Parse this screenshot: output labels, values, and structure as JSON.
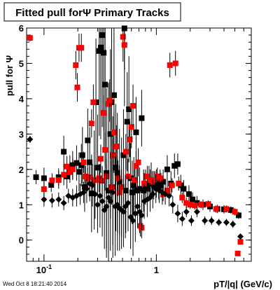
{
  "chart_data": {
    "type": "scatter",
    "title": "Fitted pull forΨ   Primary Tracks",
    "xlabel": "pT/|q| (GeV/c)",
    "ylabel": "pull for Ψ",
    "xscale": "log",
    "xlim": [
      0.07,
      7.0
    ],
    "ylim": [
      -0.6,
      6.0
    ],
    "x_ticks": [
      {
        "value": 0.1,
        "label": "10",
        "sup": "-1"
      },
      {
        "value": 1,
        "label": "1",
        "sup": ""
      }
    ],
    "y_ticks": [
      0,
      1,
      2,
      3,
      4,
      5,
      6
    ],
    "grid": false,
    "legend": "none",
    "series": [
      {
        "marker": "square",
        "color": "#000000",
        "points": [
          [
            0.085,
            1.78,
            0.2
          ],
          [
            0.1,
            1.75,
            0.3
          ],
          [
            0.116,
            1.56,
            0.2
          ],
          [
            0.135,
            1.78,
            0.25
          ],
          [
            0.15,
            2.5,
            0.45
          ],
          [
            0.16,
            1.8,
            0.35
          ],
          [
            0.17,
            2.05,
            0.35
          ],
          [
            0.18,
            2.12,
            0.4
          ],
          [
            0.195,
            2.18,
            0.5
          ],
          [
            0.205,
            1.93,
            0.55
          ],
          [
            0.215,
            2.12,
            0.6
          ],
          [
            0.22,
            2.4,
            0.8
          ],
          [
            0.23,
            1.5,
            0.7
          ],
          [
            0.245,
            2.82,
            0.9
          ],
          [
            0.255,
            2.2,
            1.0
          ],
          [
            0.265,
            1.32,
            1.1
          ],
          [
            0.28,
            1.7,
            1.4
          ],
          [
            0.29,
            3.9,
            1.8
          ],
          [
            0.3,
            2.05,
            1.5
          ],
          [
            0.31,
            5.35,
            2.4
          ],
          [
            0.32,
            5.45,
            2.6
          ],
          [
            0.33,
            5.8,
            2.6
          ],
          [
            0.34,
            5.3,
            2.8
          ],
          [
            0.35,
            4.4,
            3.0
          ],
          [
            0.36,
            1.9,
            2.4
          ],
          [
            0.375,
            1.4,
            2.2
          ],
          [
            0.39,
            3.0,
            2.4
          ],
          [
            0.4,
            3.9,
            2.5
          ],
          [
            0.41,
            1.5,
            2.0
          ],
          [
            0.42,
            4.1,
            2.2
          ],
          [
            0.435,
            2.05,
            1.8
          ],
          [
            0.45,
            1.9,
            1.7
          ],
          [
            0.47,
            1.65,
            1.5
          ],
          [
            0.49,
            1.5,
            1.4
          ],
          [
            0.51,
            2.4,
            1.3
          ],
          [
            0.52,
            5.99,
            2.2
          ],
          [
            0.535,
            1.4,
            1.2
          ],
          [
            0.55,
            3.35,
            1.4
          ],
          [
            0.57,
            3.7,
            1.5
          ],
          [
            0.59,
            1.75,
            1.0
          ],
          [
            0.61,
            1.35,
            0.9
          ],
          [
            0.63,
            1.55,
            0.8
          ],
          [
            0.66,
            3.05,
            1.0
          ],
          [
            0.68,
            1.4,
            0.7
          ],
          [
            0.71,
            1.45,
            0.6
          ],
          [
            0.74,
            3.45,
            0.8
          ],
          [
            0.77,
            1.4,
            0.6
          ],
          [
            0.8,
            1.5,
            0.5
          ],
          [
            0.83,
            1.45,
            0.5
          ],
          [
            0.86,
            1.6,
            0.5
          ],
          [
            0.9,
            1.7,
            0.5
          ],
          [
            0.95,
            1.55,
            0.4
          ],
          [
            1.0,
            1.6,
            0.4
          ],
          [
            1.05,
            1.5,
            0.35
          ],
          [
            1.1,
            1.55,
            0.35
          ],
          [
            1.15,
            1.65,
            0.35
          ],
          [
            1.25,
            2.0,
            0.4
          ],
          [
            1.35,
            1.6,
            0.35
          ],
          [
            1.45,
            2.1,
            0.35
          ],
          [
            1.55,
            2.15,
            0.3
          ],
          [
            1.65,
            1.55,
            0.3
          ],
          [
            1.75,
            1.45,
            0.25
          ],
          [
            1.95,
            1.3,
            0.25
          ],
          [
            2.1,
            1.15,
            0.2
          ],
          [
            2.3,
            1.05,
            0.2
          ],
          [
            2.6,
            1.0,
            0.15
          ],
          [
            3.0,
            0.95,
            0.15
          ],
          [
            3.5,
            0.88,
            0.12
          ],
          [
            4.0,
            0.87,
            0.12
          ],
          [
            4.6,
            0.85,
            0.1
          ],
          [
            5.4,
            0.7,
            0.1
          ]
        ]
      },
      {
        "marker": "square",
        "color": "#ff0000",
        "points": [
          [
            0.075,
            5.72,
            0.1
          ],
          [
            0.1,
            1.44,
            0.2
          ],
          [
            0.118,
            1.69,
            0.2
          ],
          [
            0.135,
            1.7,
            0.25
          ],
          [
            0.15,
            1.85,
            0.3
          ],
          [
            0.16,
            2.08,
            0.3
          ],
          [
            0.17,
            1.92,
            0.3
          ],
          [
            0.18,
            2.0,
            0.3
          ],
          [
            0.192,
            4.95,
            0.4
          ],
          [
            0.198,
            4.32,
            0.4
          ],
          [
            0.205,
            5.44,
            0.4
          ],
          [
            0.215,
            5.44,
            0.4
          ],
          [
            0.225,
            2.2,
            0.3
          ],
          [
            0.235,
            1.8,
            0.3
          ],
          [
            0.245,
            1.75,
            0.3
          ],
          [
            0.255,
            1.78,
            0.3
          ],
          [
            0.265,
            3.3,
            0.4
          ],
          [
            0.275,
            3.9,
            0.5
          ],
          [
            0.285,
            1.7,
            0.4
          ],
          [
            0.3,
            1.7,
            0.4
          ],
          [
            0.31,
            1.75,
            0.4
          ],
          [
            0.32,
            2.3,
            0.4
          ],
          [
            0.33,
            1.68,
            0.4
          ],
          [
            0.34,
            3.6,
            0.5
          ],
          [
            0.35,
            2.55,
            0.5
          ],
          [
            0.36,
            1.8,
            0.5
          ],
          [
            0.375,
            3.85,
            0.6
          ],
          [
            0.385,
            3.95,
            0.6
          ],
          [
            0.4,
            1.5,
            0.5
          ],
          [
            0.41,
            2.4,
            0.5
          ],
          [
            0.42,
            3.05,
            0.6
          ],
          [
            0.44,
            2.65,
            0.6
          ],
          [
            0.455,
            1.75,
            0.5
          ],
          [
            0.47,
            1.35,
            0.5
          ],
          [
            0.49,
            1.5,
            0.5
          ],
          [
            0.505,
            5.75,
            0.7
          ],
          [
            0.52,
            5.52,
            0.7
          ],
          [
            0.535,
            2.5,
            0.5
          ],
          [
            0.56,
            1.8,
            0.5
          ],
          [
            0.58,
            2.85,
            0.5
          ],
          [
            0.6,
            3.2,
            0.6
          ],
          [
            0.62,
            3.8,
            0.6
          ],
          [
            0.64,
            1.7,
            0.4
          ],
          [
            0.66,
            2.1,
            0.4
          ],
          [
            0.69,
            2.2,
            0.4
          ],
          [
            0.72,
            0.4,
            0.3
          ],
          [
            0.74,
            0.35,
            0.3
          ],
          [
            0.78,
            1.6,
            0.3
          ],
          [
            0.83,
            1.8,
            0.3
          ],
          [
            0.88,
            1.7,
            0.3
          ],
          [
            0.92,
            1.65,
            0.3
          ],
          [
            0.97,
            1.7,
            0.25
          ],
          [
            1.02,
            1.8,
            0.25
          ],
          [
            1.08,
            1.75,
            0.25
          ],
          [
            1.15,
            1.3,
            0.2
          ],
          [
            1.25,
            1.4,
            0.2
          ],
          [
            1.32,
            4.95,
            0.35
          ],
          [
            1.38,
            1.55,
            0.2
          ],
          [
            1.48,
            5.0,
            0.35
          ],
          [
            1.58,
            1.6,
            0.2
          ],
          [
            1.7,
            1.2,
            0.15
          ],
          [
            1.85,
            1.05,
            0.15
          ],
          [
            2.0,
            1.0,
            0.12
          ],
          [
            2.2,
            0.98,
            0.12
          ],
          [
            2.5,
            1.0,
            0.1
          ],
          [
            2.9,
            1.02,
            0.1
          ],
          [
            3.4,
            0.88,
            0.1
          ],
          [
            4.2,
            0.88,
            0.1
          ],
          [
            5.0,
            0.8,
            0.1
          ],
          [
            5.6,
            -0.05,
            0.08
          ],
          [
            5.3,
            -0.38,
            0.08
          ]
        ]
      },
      {
        "marker": "diamond",
        "color": "#000000",
        "points": [
          [
            0.075,
            2.85,
            0.1
          ],
          [
            0.1,
            1.15,
            0.2
          ],
          [
            0.118,
            1.12,
            0.2
          ],
          [
            0.135,
            1.15,
            0.2
          ],
          [
            0.15,
            1.05,
            0.2
          ],
          [
            0.165,
            1.25,
            0.2
          ],
          [
            0.18,
            1.2,
            0.25
          ],
          [
            0.195,
            1.25,
            0.3
          ],
          [
            0.21,
            1.3,
            0.3
          ],
          [
            0.225,
            1.35,
            0.3
          ],
          [
            0.24,
            1.45,
            0.4
          ],
          [
            0.255,
            1.6,
            0.5
          ],
          [
            0.27,
            1.55,
            0.6
          ],
          [
            0.285,
            1.3,
            0.7
          ],
          [
            0.3,
            1.0,
            0.8
          ],
          [
            0.315,
            1.25,
            0.9
          ],
          [
            0.33,
            1.1,
            1.0
          ],
          [
            0.345,
            0.85,
            1.1
          ],
          [
            0.36,
            0.95,
            1.2
          ],
          [
            0.375,
            1.2,
            1.3
          ],
          [
            0.39,
            1.1,
            1.4
          ],
          [
            0.41,
            1.35,
            1.5
          ],
          [
            0.43,
            0.95,
            1.4
          ],
          [
            0.45,
            1.0,
            1.3
          ],
          [
            0.47,
            0.9,
            1.2
          ],
          [
            0.49,
            0.85,
            1.1
          ],
          [
            0.51,
            0.8,
            1.0
          ],
          [
            0.53,
            0.95,
            0.9
          ],
          [
            0.56,
            1.05,
            0.8
          ],
          [
            0.59,
            0.65,
            0.9
          ],
          [
            0.62,
            0.55,
            1.0
          ],
          [
            0.65,
            0.75,
            0.8
          ],
          [
            0.68,
            0.95,
            0.6
          ],
          [
            0.71,
            0.8,
            0.6
          ],
          [
            0.74,
            0.7,
            0.6
          ],
          [
            0.78,
            1.1,
            0.5
          ],
          [
            0.83,
            1.15,
            0.5
          ],
          [
            0.88,
            1.2,
            0.4
          ],
          [
            0.93,
            1.3,
            0.4
          ],
          [
            0.99,
            1.45,
            0.4
          ],
          [
            1.06,
            1.4,
            0.35
          ],
          [
            1.13,
            1.35,
            0.35
          ],
          [
            1.2,
            1.3,
            0.3
          ],
          [
            1.3,
            1.25,
            0.3
          ],
          [
            1.4,
            1.0,
            0.25
          ],
          [
            1.55,
            0.75,
            0.25
          ],
          [
            1.7,
            0.6,
            0.2
          ],
          [
            1.85,
            0.8,
            0.15
          ],
          [
            2.05,
            0.55,
            0.15
          ],
          [
            2.3,
            0.8,
            0.15
          ],
          [
            2.7,
            0.55,
            0.12
          ],
          [
            3.1,
            0.55,
            0.12
          ],
          [
            3.6,
            0.5,
            0.1
          ],
          [
            4.2,
            0.5,
            0.1
          ],
          [
            4.8,
            0.45,
            0.1
          ],
          [
            5.6,
            0.1,
            0.08
          ]
        ]
      }
    ]
  },
  "footer": {
    "timestamp": "Wed Oct  8 18:21:40 2014"
  }
}
